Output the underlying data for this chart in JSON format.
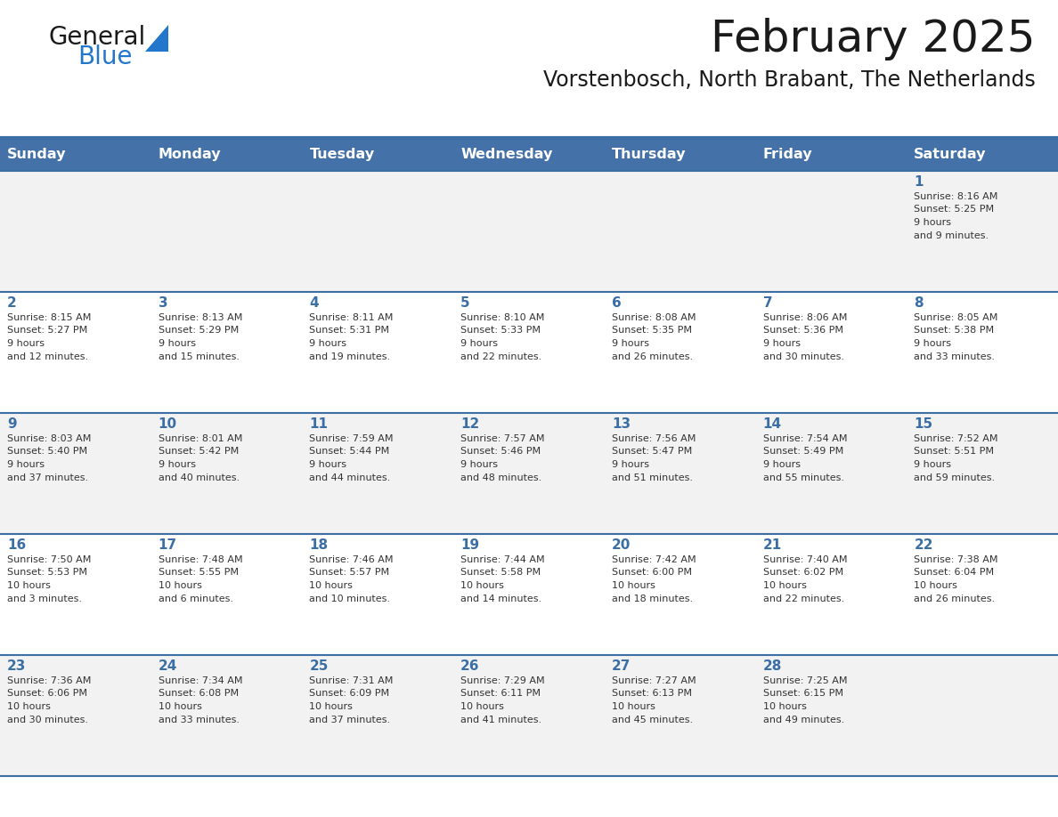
{
  "title": "February 2025",
  "subtitle": "Vorstenbosch, North Brabant, The Netherlands",
  "days_of_week": [
    "Sunday",
    "Monday",
    "Tuesday",
    "Wednesday",
    "Thursday",
    "Friday",
    "Saturday"
  ],
  "header_bg_color": "#4472A8",
  "header_text_color": "#FFFFFF",
  "cell_bg_color_odd": "#F2F2F2",
  "cell_bg_color_even": "#FFFFFF",
  "grid_line_color": "#3A6EA5",
  "day_number_color": "#3A6EA5",
  "text_color": "#333333",
  "title_color": "#1a1a1a",
  "logo_general_color": "#1a1a1a",
  "logo_blue_color": "#2277CC",
  "calendar_data": [
    [
      null,
      null,
      null,
      null,
      null,
      null,
      {
        "day": 1,
        "sunrise": "8:16 AM",
        "sunset": "5:25 PM",
        "daylight": "9 hours and 9 minutes."
      }
    ],
    [
      {
        "day": 2,
        "sunrise": "8:15 AM",
        "sunset": "5:27 PM",
        "daylight": "9 hours and 12 minutes."
      },
      {
        "day": 3,
        "sunrise": "8:13 AM",
        "sunset": "5:29 PM",
        "daylight": "9 hours and 15 minutes."
      },
      {
        "day": 4,
        "sunrise": "8:11 AM",
        "sunset": "5:31 PM",
        "daylight": "9 hours and 19 minutes."
      },
      {
        "day": 5,
        "sunrise": "8:10 AM",
        "sunset": "5:33 PM",
        "daylight": "9 hours and 22 minutes."
      },
      {
        "day": 6,
        "sunrise": "8:08 AM",
        "sunset": "5:35 PM",
        "daylight": "9 hours and 26 minutes."
      },
      {
        "day": 7,
        "sunrise": "8:06 AM",
        "sunset": "5:36 PM",
        "daylight": "9 hours and 30 minutes."
      },
      {
        "day": 8,
        "sunrise": "8:05 AM",
        "sunset": "5:38 PM",
        "daylight": "9 hours and 33 minutes."
      }
    ],
    [
      {
        "day": 9,
        "sunrise": "8:03 AM",
        "sunset": "5:40 PM",
        "daylight": "9 hours and 37 minutes."
      },
      {
        "day": 10,
        "sunrise": "8:01 AM",
        "sunset": "5:42 PM",
        "daylight": "9 hours and 40 minutes."
      },
      {
        "day": 11,
        "sunrise": "7:59 AM",
        "sunset": "5:44 PM",
        "daylight": "9 hours and 44 minutes."
      },
      {
        "day": 12,
        "sunrise": "7:57 AM",
        "sunset": "5:46 PM",
        "daylight": "9 hours and 48 minutes."
      },
      {
        "day": 13,
        "sunrise": "7:56 AM",
        "sunset": "5:47 PM",
        "daylight": "9 hours and 51 minutes."
      },
      {
        "day": 14,
        "sunrise": "7:54 AM",
        "sunset": "5:49 PM",
        "daylight": "9 hours and 55 minutes."
      },
      {
        "day": 15,
        "sunrise": "7:52 AM",
        "sunset": "5:51 PM",
        "daylight": "9 hours and 59 minutes."
      }
    ],
    [
      {
        "day": 16,
        "sunrise": "7:50 AM",
        "sunset": "5:53 PM",
        "daylight": "10 hours and 3 minutes."
      },
      {
        "day": 17,
        "sunrise": "7:48 AM",
        "sunset": "5:55 PM",
        "daylight": "10 hours and 6 minutes."
      },
      {
        "day": 18,
        "sunrise": "7:46 AM",
        "sunset": "5:57 PM",
        "daylight": "10 hours and 10 minutes."
      },
      {
        "day": 19,
        "sunrise": "7:44 AM",
        "sunset": "5:58 PM",
        "daylight": "10 hours and 14 minutes."
      },
      {
        "day": 20,
        "sunrise": "7:42 AM",
        "sunset": "6:00 PM",
        "daylight": "10 hours and 18 minutes."
      },
      {
        "day": 21,
        "sunrise": "7:40 AM",
        "sunset": "6:02 PM",
        "daylight": "10 hours and 22 minutes."
      },
      {
        "day": 22,
        "sunrise": "7:38 AM",
        "sunset": "6:04 PM",
        "daylight": "10 hours and 26 minutes."
      }
    ],
    [
      {
        "day": 23,
        "sunrise": "7:36 AM",
        "sunset": "6:06 PM",
        "daylight": "10 hours and 30 minutes."
      },
      {
        "day": 24,
        "sunrise": "7:34 AM",
        "sunset": "6:08 PM",
        "daylight": "10 hours and 33 minutes."
      },
      {
        "day": 25,
        "sunrise": "7:31 AM",
        "sunset": "6:09 PM",
        "daylight": "10 hours and 37 minutes."
      },
      {
        "day": 26,
        "sunrise": "7:29 AM",
        "sunset": "6:11 PM",
        "daylight": "10 hours and 41 minutes."
      },
      {
        "day": 27,
        "sunrise": "7:27 AM",
        "sunset": "6:13 PM",
        "daylight": "10 hours and 45 minutes."
      },
      {
        "day": 28,
        "sunrise": "7:25 AM",
        "sunset": "6:15 PM",
        "daylight": "10 hours and 49 minutes."
      },
      null
    ]
  ]
}
